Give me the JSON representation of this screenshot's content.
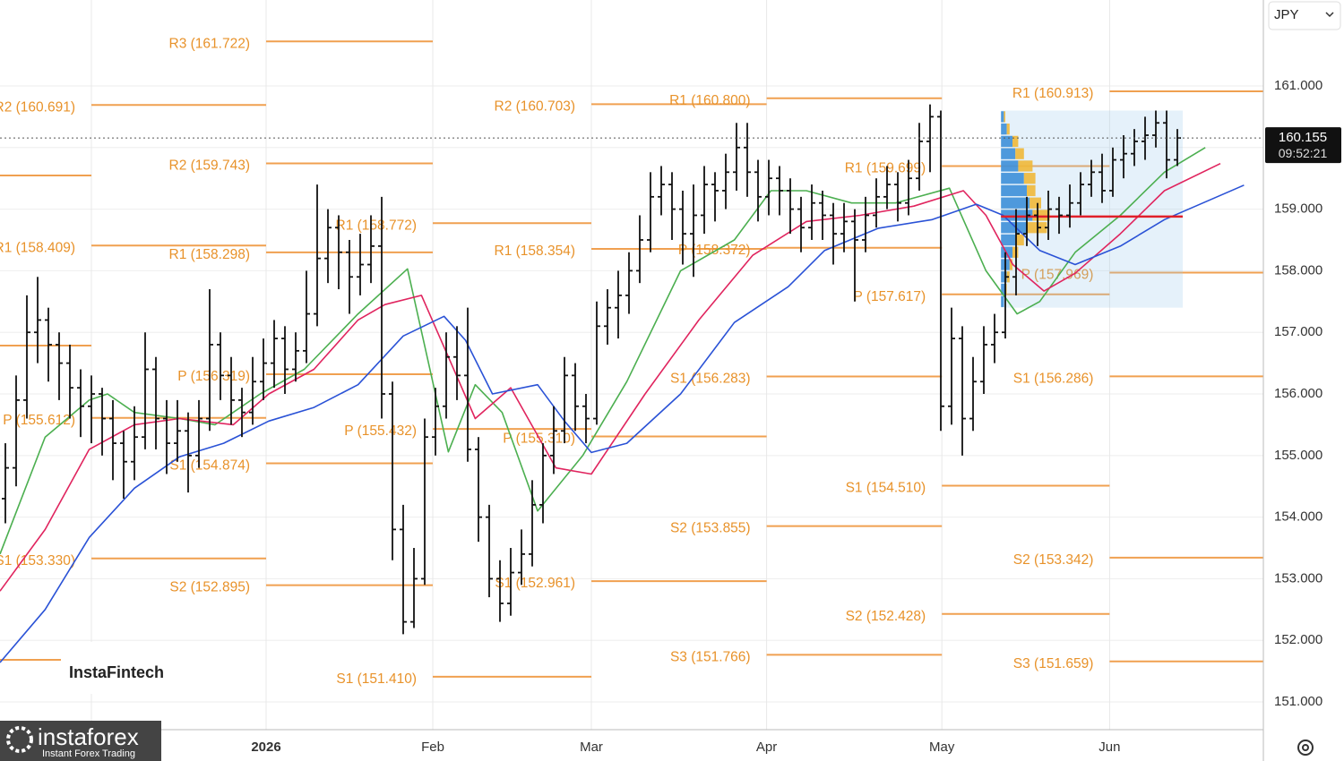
{
  "chart_data": {
    "type": "ohlc",
    "ui": {
      "currency": "JPY",
      "watermark": "InstaFintech",
      "logo": "instaforex",
      "logo_tagline": "Instant Forex Trading"
    },
    "xlim": [
      -0.5,
      117
    ],
    "ylim": [
      150.55,
      162.395
    ],
    "xticks": [
      {
        "value": 8,
        "label": null
      },
      {
        "value": 24.25,
        "label": "2026"
      },
      {
        "value": 39.75,
        "label": "Feb"
      },
      {
        "value": 54.5,
        "label": "Mar"
      },
      {
        "value": 70.8,
        "label": "Apr"
      },
      {
        "value": 87.1,
        "label": "May"
      },
      {
        "value": 102.7,
        "label": "Jun"
      }
    ],
    "yticks": [
      {
        "value": 151,
        "label": "151.000"
      },
      {
        "value": 152,
        "label": "152.000"
      },
      {
        "value": 153,
        "label": "153.000"
      },
      {
        "value": 154,
        "label": "154.000"
      },
      {
        "value": 155,
        "label": "155.000"
      },
      {
        "value": 156,
        "label": "156.000"
      },
      {
        "value": 157,
        "label": "157.000"
      },
      {
        "value": 158,
        "label": "158.000"
      },
      {
        "value": 159,
        "label": "159.000"
      },
      {
        "value": 160,
        "label": "160.000"
      },
      {
        "value": 161,
        "label": "161.000"
      }
    ],
    "grid": true,
    "last_price": 160.155,
    "countdown": "09:52:21",
    "bar_color": "#111111",
    "ohlc": [
      [
        154.3,
        155.2,
        153.9,
        154.8
      ],
      [
        154.8,
        156.3,
        154.5,
        155.9
      ],
      [
        155.9,
        157.6,
        155.6,
        157.0
      ],
      [
        157.0,
        157.9,
        156.5,
        157.2
      ],
      [
        157.2,
        157.4,
        156.2,
        156.8
      ],
      [
        156.8,
        157.0,
        155.9,
        156.5
      ],
      [
        156.5,
        156.8,
        155.6,
        156.1
      ],
      [
        156.1,
        156.4,
        155.3,
        155.8
      ],
      [
        155.8,
        156.3,
        155.2,
        156.0
      ],
      [
        156.0,
        156.1,
        155.0,
        155.6
      ],
      [
        155.6,
        155.9,
        154.6,
        155.2
      ],
      [
        155.2,
        155.4,
        154.3,
        154.9
      ],
      [
        154.9,
        155.8,
        154.6,
        155.3
      ],
      [
        155.3,
        157.0,
        155.1,
        156.4
      ],
      [
        156.4,
        156.6,
        155.1,
        155.6
      ],
      [
        155.6,
        155.9,
        154.7,
        155.2
      ],
      [
        155.2,
        155.9,
        154.9,
        155.4
      ],
      [
        155.4,
        155.7,
        154.4,
        155.0
      ],
      [
        155.0,
        155.9,
        154.8,
        155.6
      ],
      [
        155.6,
        157.7,
        155.4,
        156.8
      ],
      [
        156.8,
        157.0,
        155.9,
        156.3
      ],
      [
        156.3,
        156.6,
        155.5,
        155.9
      ],
      [
        155.9,
        156.1,
        155.3,
        155.7
      ],
      [
        155.7,
        156.6,
        155.5,
        156.2
      ],
      [
        156.2,
        156.9,
        155.9,
        156.5
      ],
      [
        156.5,
        157.2,
        156.1,
        156.9
      ],
      [
        156.9,
        157.1,
        156.0,
        156.4
      ],
      [
        156.4,
        157.0,
        156.2,
        156.7
      ],
      [
        156.7,
        158.0,
        156.5,
        157.3
      ],
      [
        157.3,
        159.4,
        157.1,
        158.2
      ],
      [
        158.2,
        159.0,
        157.8,
        158.7
      ],
      [
        158.7,
        158.9,
        157.7,
        158.3
      ],
      [
        158.3,
        158.5,
        157.3,
        157.9
      ],
      [
        157.9,
        158.6,
        157.6,
        158.1
      ],
      [
        158.1,
        158.9,
        157.8,
        158.4
      ],
      [
        158.4,
        159.2,
        155.6,
        156.0
      ],
      [
        156.0,
        156.2,
        153.3,
        153.8
      ],
      [
        153.8,
        154.2,
        152.1,
        152.3
      ],
      [
        152.3,
        153.5,
        152.2,
        153.0
      ],
      [
        153.0,
        155.6,
        152.9,
        155.3
      ],
      [
        155.3,
        156.1,
        155.0,
        155.8
      ],
      [
        155.8,
        157.0,
        155.6,
        156.6
      ],
      [
        156.6,
        157.1,
        155.9,
        156.3
      ],
      [
        156.3,
        157.4,
        154.9,
        155.1
      ],
      [
        155.1,
        155.3,
        153.6,
        154.0
      ],
      [
        154.0,
        154.2,
        152.7,
        153.0
      ],
      [
        153.0,
        153.3,
        152.3,
        152.6
      ],
      [
        152.6,
        153.5,
        152.4,
        153.1
      ],
      [
        153.1,
        153.8,
        152.9,
        153.4
      ],
      [
        153.4,
        154.6,
        153.2,
        154.2
      ],
      [
        154.2,
        155.2,
        153.9,
        155.0
      ],
      [
        155.0,
        155.8,
        154.7,
        155.4
      ],
      [
        155.4,
        156.6,
        155.2,
        156.3
      ],
      [
        156.3,
        156.5,
        155.4,
        155.8
      ],
      [
        155.8,
        156.0,
        155.2,
        155.6
      ],
      [
        155.6,
        157.5,
        155.5,
        157.1
      ],
      [
        157.1,
        157.7,
        156.8,
        157.4
      ],
      [
        157.4,
        158.0,
        156.9,
        157.6
      ],
      [
        157.6,
        158.3,
        157.3,
        158.0
      ],
      [
        158.0,
        158.9,
        157.8,
        158.5
      ],
      [
        158.5,
        159.6,
        158.3,
        159.2
      ],
      [
        159.2,
        159.7,
        158.9,
        159.4
      ],
      [
        159.4,
        159.6,
        158.5,
        159.0
      ],
      [
        159.0,
        159.3,
        158.1,
        158.6
      ],
      [
        158.6,
        159.4,
        157.9,
        158.9
      ],
      [
        158.9,
        159.7,
        158.6,
        159.4
      ],
      [
        159.4,
        159.6,
        158.8,
        159.3
      ],
      [
        159.3,
        159.9,
        159.0,
        159.6
      ],
      [
        159.6,
        160.4,
        159.3,
        160.0
      ],
      [
        160.0,
        160.4,
        159.2,
        159.6
      ],
      [
        159.6,
        159.8,
        158.8,
        159.2
      ],
      [
        159.2,
        159.8,
        158.9,
        159.5
      ],
      [
        159.5,
        159.7,
        158.9,
        159.3
      ],
      [
        159.3,
        159.5,
        158.6,
        159.0
      ],
      [
        159.0,
        159.2,
        158.3,
        158.7
      ],
      [
        158.7,
        159.4,
        158.5,
        159.1
      ],
      [
        159.1,
        159.3,
        158.5,
        158.9
      ],
      [
        158.9,
        159.1,
        158.1,
        158.6
      ],
      [
        158.6,
        159.1,
        158.3,
        158.8
      ],
      [
        158.8,
        159.0,
        157.5,
        158.5
      ],
      [
        158.5,
        159.2,
        158.3,
        158.9
      ],
      [
        158.9,
        159.5,
        158.7,
        159.2
      ],
      [
        159.2,
        159.7,
        159.0,
        159.4
      ],
      [
        159.4,
        159.6,
        158.8,
        159.1
      ],
      [
        159.1,
        159.8,
        158.9,
        159.5
      ],
      [
        159.5,
        160.4,
        159.3,
        160.1
      ],
      [
        160.1,
        160.7,
        159.6,
        160.5
      ],
      [
        160.5,
        160.6,
        155.4,
        155.8
      ],
      [
        155.8,
        157.4,
        155.5,
        156.9
      ],
      [
        156.9,
        157.1,
        155.0,
        155.6
      ],
      [
        155.6,
        156.6,
        155.4,
        156.2
      ],
      [
        156.2,
        157.1,
        156.0,
        156.8
      ],
      [
        156.8,
        157.3,
        156.5,
        157.0
      ],
      [
        157.0,
        158.3,
        156.9,
        157.9
      ],
      [
        157.9,
        159.0,
        157.6,
        158.6
      ],
      [
        158.6,
        159.2,
        158.4,
        158.9
      ],
      [
        158.9,
        159.1,
        158.4,
        158.7
      ],
      [
        158.7,
        159.3,
        158.5,
        159.0
      ],
      [
        159.0,
        159.2,
        158.6,
        158.9
      ],
      [
        158.9,
        159.4,
        158.7,
        159.1
      ],
      [
        159.1,
        159.6,
        158.9,
        159.4
      ],
      [
        159.4,
        159.8,
        159.2,
        159.6
      ],
      [
        159.6,
        159.9,
        159.1,
        159.3
      ],
      [
        159.3,
        160.0,
        159.2,
        159.8
      ],
      [
        159.8,
        160.2,
        159.5,
        159.9
      ],
      [
        159.9,
        160.3,
        159.7,
        160.1
      ],
      [
        160.1,
        160.5,
        159.8,
        160.2
      ],
      [
        160.2,
        160.6,
        160.0,
        160.4
      ],
      [
        160.4,
        160.6,
        159.5,
        159.8
      ],
      [
        159.8,
        160.3,
        159.7,
        160.155
      ]
    ],
    "moving_averages": [
      {
        "color": "#4caf50",
        "x": [
          -0.5,
          3.7,
          7.8,
          9.5,
          12,
          16.2,
          19.5,
          23.7,
          27.8,
          32.8,
          37.4,
          41.2,
          43.7,
          46.2,
          49.5,
          53.7,
          57.8,
          62.8,
          67.8,
          71.2,
          74.5,
          78.7,
          82.8,
          87.8,
          91.2,
          94.1,
          96.2,
          99.5,
          103.7,
          107.8,
          111.6
        ],
        "values": [
          153.4,
          155.3,
          155.9,
          156.0,
          155.7,
          155.6,
          155.5,
          156.0,
          156.4,
          157.3,
          158.03,
          155.06,
          156.15,
          155.7,
          154.1,
          155.0,
          156.2,
          158.0,
          158.5,
          159.3,
          159.3,
          159.1,
          159.1,
          159.34,
          158.0,
          157.3,
          157.5,
          158.3,
          158.9,
          159.6,
          160.0
        ]
      },
      {
        "color": "#e0245e",
        "x": [
          -0.5,
          3.7,
          7.8,
          12,
          16.2,
          21.2,
          24.5,
          28.7,
          32.8,
          35.3,
          38.7,
          41.2,
          43.7,
          47,
          51.2,
          54.5,
          59.5,
          64.5,
          69.5,
          74.5,
          79.5,
          84.5,
          89.1,
          91.2,
          93.7,
          96.6,
          99.5,
          103.7,
          107.8,
          113
        ],
        "values": [
          152.8,
          153.8,
          155.1,
          155.5,
          155.6,
          155.5,
          156.0,
          156.4,
          157.2,
          157.45,
          157.6,
          156.6,
          155.6,
          156.1,
          154.8,
          154.7,
          156.0,
          157.2,
          158.25,
          158.8,
          158.9,
          159.05,
          159.3,
          158.9,
          158.1,
          157.67,
          157.96,
          158.6,
          159.3,
          159.74
        ]
      },
      {
        "color": "#2a52d6",
        "x": [
          -0.5,
          3.7,
          7.8,
          12,
          16.2,
          20.3,
          24.5,
          28.7,
          32.8,
          37,
          40.8,
          42.8,
          45.3,
          49.5,
          52,
          54.5,
          57.8,
          62.8,
          67.8,
          72.8,
          76.2,
          81.2,
          86.2,
          90.3,
          92.8,
          96.2,
          99.5,
          103.7,
          107.8,
          115.2
        ],
        "values": [
          151.64,
          152.5,
          153.67,
          154.47,
          154.98,
          155.2,
          155.56,
          155.78,
          156.15,
          156.94,
          157.26,
          156.87,
          156.0,
          156.15,
          155.56,
          155.05,
          155.2,
          156.0,
          157.16,
          157.74,
          158.33,
          158.69,
          158.83,
          159.08,
          158.9,
          158.33,
          158.1,
          158.4,
          158.83,
          159.39
        ]
      }
    ],
    "pivots": [
      {
        "start": -0.5,
        "end": 8,
        "levels": [
          {
            "label": null,
            "value": 159.547
          },
          {
            "label": null,
            "value": 156.785
          },
          {
            "label": null,
            "value": 151.683
          }
        ]
      },
      {
        "start": 8,
        "end": 24.25,
        "levels": [
          {
            "label": "R2 (160.691)",
            "value": 160.691
          },
          {
            "label": "R1 (158.409)",
            "value": 158.409
          },
          {
            "label": "P (155.612)",
            "value": 155.612
          },
          {
            "label": "S1 (153.330)",
            "value": 153.33
          }
        ]
      },
      {
        "start": 24.25,
        "end": 39.75,
        "levels": [
          {
            "label": "R3 (161.722)",
            "value": 161.722
          },
          {
            "label": "R2 (159.743)",
            "value": 159.743
          },
          {
            "label": "R1 (158.298)",
            "value": 158.298
          },
          {
            "label": "P (156.319)",
            "value": 156.319
          },
          {
            "label": "S1 (154.874)",
            "value": 154.874
          },
          {
            "label": "S2 (152.895)",
            "value": 152.895
          }
        ]
      },
      {
        "start": 39.75,
        "end": 54.5,
        "levels": [
          {
            "label": "R1 (158.772)",
            "value": 158.772
          },
          {
            "label": "P (155.432)",
            "value": 155.432
          },
          {
            "label": "S1 (151.410)",
            "value": 151.41
          }
        ]
      },
      {
        "start": 54.5,
        "end": 70.8,
        "levels": [
          {
            "label": "R2 (160.703)",
            "value": 160.703
          },
          {
            "label": "R1 (158.354)",
            "value": 158.354
          },
          {
            "label": "P (155.310)",
            "value": 155.31
          },
          {
            "label": "S1 (152.961)",
            "value": 152.961
          }
        ]
      },
      {
        "start": 70.8,
        "end": 87.1,
        "levels": [
          {
            "label": "R1 (160.800)",
            "value": 160.8
          },
          {
            "label": "P (158.372)",
            "value": 158.372
          },
          {
            "label": "S1 (156.283)",
            "value": 156.283
          },
          {
            "label": "S2 (153.855)",
            "value": 153.855
          },
          {
            "label": "S3 (151.766)",
            "value": 151.766
          }
        ]
      },
      {
        "start": 87.1,
        "end": 102.7,
        "levels": [
          {
            "label": "R1 (159.699)",
            "value": 159.699
          },
          {
            "label": "P (157.617)",
            "value": 157.617
          },
          {
            "label": "S1 (154.510)",
            "value": 154.51
          },
          {
            "label": "S2 (152.428)",
            "value": 152.428
          }
        ]
      },
      {
        "start": 102.7,
        "end": 117,
        "levels": [
          {
            "label": "R1 (160.913)",
            "value": 160.913
          },
          {
            "label": "P (157.969)",
            "value": 157.969
          },
          {
            "label": "S1 (156.286)",
            "value": 156.286
          },
          {
            "label": "S2 (153.342)",
            "value": 153.342
          },
          {
            "label": "S3 (151.659)",
            "value": 151.659
          }
        ]
      }
    ],
    "pivot_color": "#f0a050",
    "profile": {
      "x": [
        92.6,
        109.5
      ],
      "price_bins": [
        157.4,
        157.6,
        157.8,
        158.0,
        158.2,
        158.4,
        158.6,
        158.8,
        159.0,
        159.2,
        159.4,
        159.6,
        159.8,
        160.0,
        160.2,
        160.4,
        160.6
      ],
      "buy": [
        2,
        3,
        4,
        6,
        8,
        10,
        18,
        22,
        20,
        18,
        16,
        12,
        10,
        8,
        4,
        2
      ],
      "sell": [
        0,
        1,
        2,
        2,
        4,
        6,
        14,
        12,
        8,
        6,
        8,
        10,
        6,
        4,
        2,
        1
      ],
      "buy_color": "#3d8fd8",
      "sell_color": "#f0b838",
      "poc": 158.88,
      "poc_color": "#e0202a"
    }
  }
}
